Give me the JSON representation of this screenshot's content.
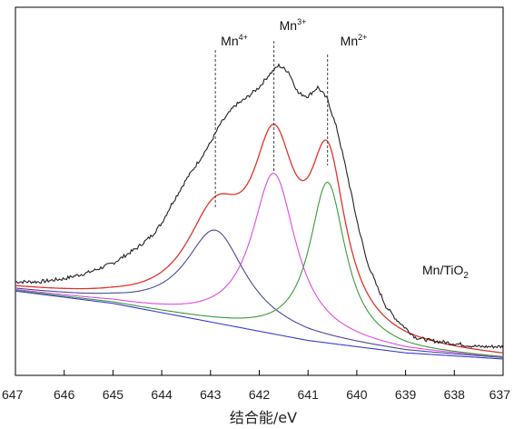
{
  "chart_data": {
    "type": "line",
    "xlabel": "结合能/eV",
    "ylabel": "",
    "title": "",
    "xlim": [
      647,
      637
    ],
    "x_reversed": true,
    "xticks": [
      647,
      646,
      645,
      644,
      643,
      642,
      641,
      640,
      639,
      638,
      637
    ],
    "grid": false,
    "y_ticks_shown": false,
    "sample_label": {
      "base": "Mn/TiO",
      "sub": "2"
    },
    "annotations": [
      {
        "base": "Mn",
        "sup": "4+",
        "x": 642.9
      },
      {
        "base": "Mn",
        "sup": "3+",
        "x": 641.7
      },
      {
        "base": "Mn",
        "sup": "2+",
        "x": 640.6
      }
    ],
    "series": [
      {
        "role": "background",
        "color": "#3a3ad6",
        "x": [
          647,
          646,
          645,
          644,
          643,
          642,
          641,
          640,
          639,
          638,
          637
        ],
        "y": [
          0.22,
          0.2,
          0.18,
          0.15,
          0.12,
          0.09,
          0.06,
          0.04,
          0.02,
          0.01,
          0.0
        ]
      },
      {
        "role": "component",
        "ion": "Mn4+",
        "color": "#4a4a9a",
        "center": 642.9,
        "height": 0.3,
        "width": 0.75
      },
      {
        "role": "component",
        "ion": "Mn3+",
        "color": "#e04ae0",
        "center": 641.7,
        "height": 0.52,
        "width": 0.55
      },
      {
        "role": "component",
        "ion": "Mn2+",
        "color": "#3a9a3a",
        "center": 640.6,
        "height": 0.52,
        "width": 0.45
      },
      {
        "role": "fit",
        "color": "#e0342a"
      },
      {
        "role": "raw",
        "color": "#222222",
        "x": [
          647,
          646.5,
          646,
          645.5,
          645,
          644.5,
          644.2,
          644,
          643.8,
          643.5,
          643.2,
          643,
          642.8,
          642.5,
          642.3,
          642,
          641.8,
          641.6,
          641.4,
          641.2,
          641,
          640.8,
          640.6,
          640.4,
          640.2,
          640,
          639.8,
          639.6,
          639.4,
          639.2,
          639,
          638.8,
          638.5,
          638,
          637.5,
          637
        ],
        "y": [
          0.25,
          0.25,
          0.26,
          0.28,
          0.31,
          0.36,
          0.4,
          0.44,
          0.5,
          0.58,
          0.65,
          0.7,
          0.76,
          0.82,
          0.84,
          0.88,
          0.92,
          0.95,
          0.93,
          0.86,
          0.85,
          0.88,
          0.84,
          0.74,
          0.6,
          0.45,
          0.32,
          0.24,
          0.17,
          0.13,
          0.1,
          0.07,
          0.06,
          0.05,
          0.04,
          0.04
        ]
      }
    ]
  }
}
